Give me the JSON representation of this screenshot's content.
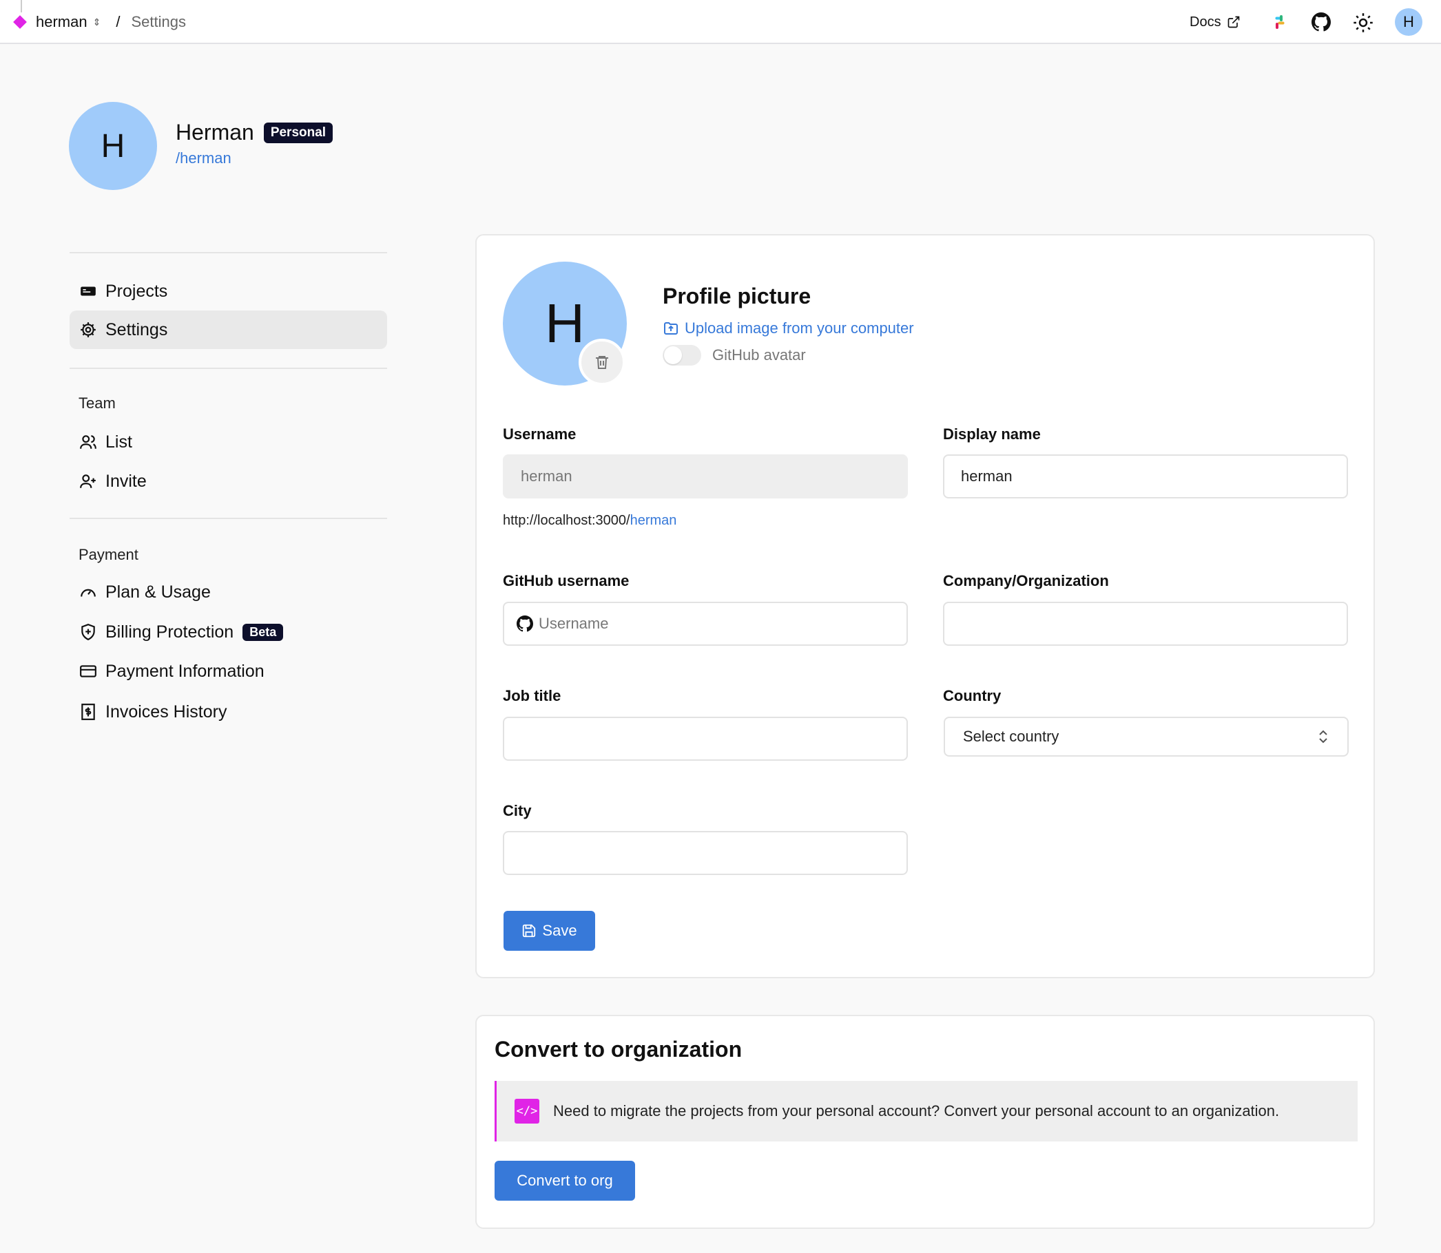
{
  "topbar": {
    "workspace": "herman",
    "separator": "/",
    "page": "Settings",
    "docs": "Docs",
    "avatar_initial": "H",
    "brand_color": "#e024e6"
  },
  "profile": {
    "initial": "H",
    "name": "Herman",
    "badge": "Personal",
    "handle": "/herman"
  },
  "sidebar": {
    "main": [
      {
        "label": "Projects",
        "icon": "projects-icon"
      },
      {
        "label": "Settings",
        "icon": "gear-icon",
        "active": true
      }
    ],
    "team": {
      "heading": "Team",
      "items": [
        {
          "label": "List",
          "icon": "users-icon"
        },
        {
          "label": "Invite",
          "icon": "user-plus-icon"
        }
      ]
    },
    "payment": {
      "heading": "Payment",
      "items": [
        {
          "label": "Plan & Usage",
          "icon": "gauge-icon"
        },
        {
          "label": "Billing Protection",
          "icon": "shield-plus-icon",
          "badge": "Beta"
        },
        {
          "label": "Payment Information",
          "icon": "credit-card-icon"
        },
        {
          "label": "Invoices History",
          "icon": "receipt-icon"
        }
      ]
    }
  },
  "form": {
    "avatar_initial": "H",
    "picture_title": "Profile picture",
    "upload_label": "Upload image from your computer",
    "github_avatar_label": "GitHub avatar",
    "github_avatar_enabled": false,
    "username_label": "Username",
    "username_value": "herman",
    "url_prefix": "http://localhost:3000/",
    "url_user": "herman",
    "display_name_label": "Display name",
    "display_name_value": "herman",
    "github_label": "GitHub username",
    "github_placeholder": "Username",
    "company_label": "Company/Organization",
    "company_value": "",
    "job_label": "Job title",
    "job_value": "",
    "country_label": "Country",
    "country_value": "Select country",
    "city_label": "City",
    "city_value": "",
    "save_label": "Save"
  },
  "convert": {
    "title": "Convert to organization",
    "message": "Need to migrate the projects from your personal account? Convert your personal account to an organization.",
    "button": "Convert to org",
    "accent": "#e024e6",
    "button_color": "#3779d9"
  }
}
